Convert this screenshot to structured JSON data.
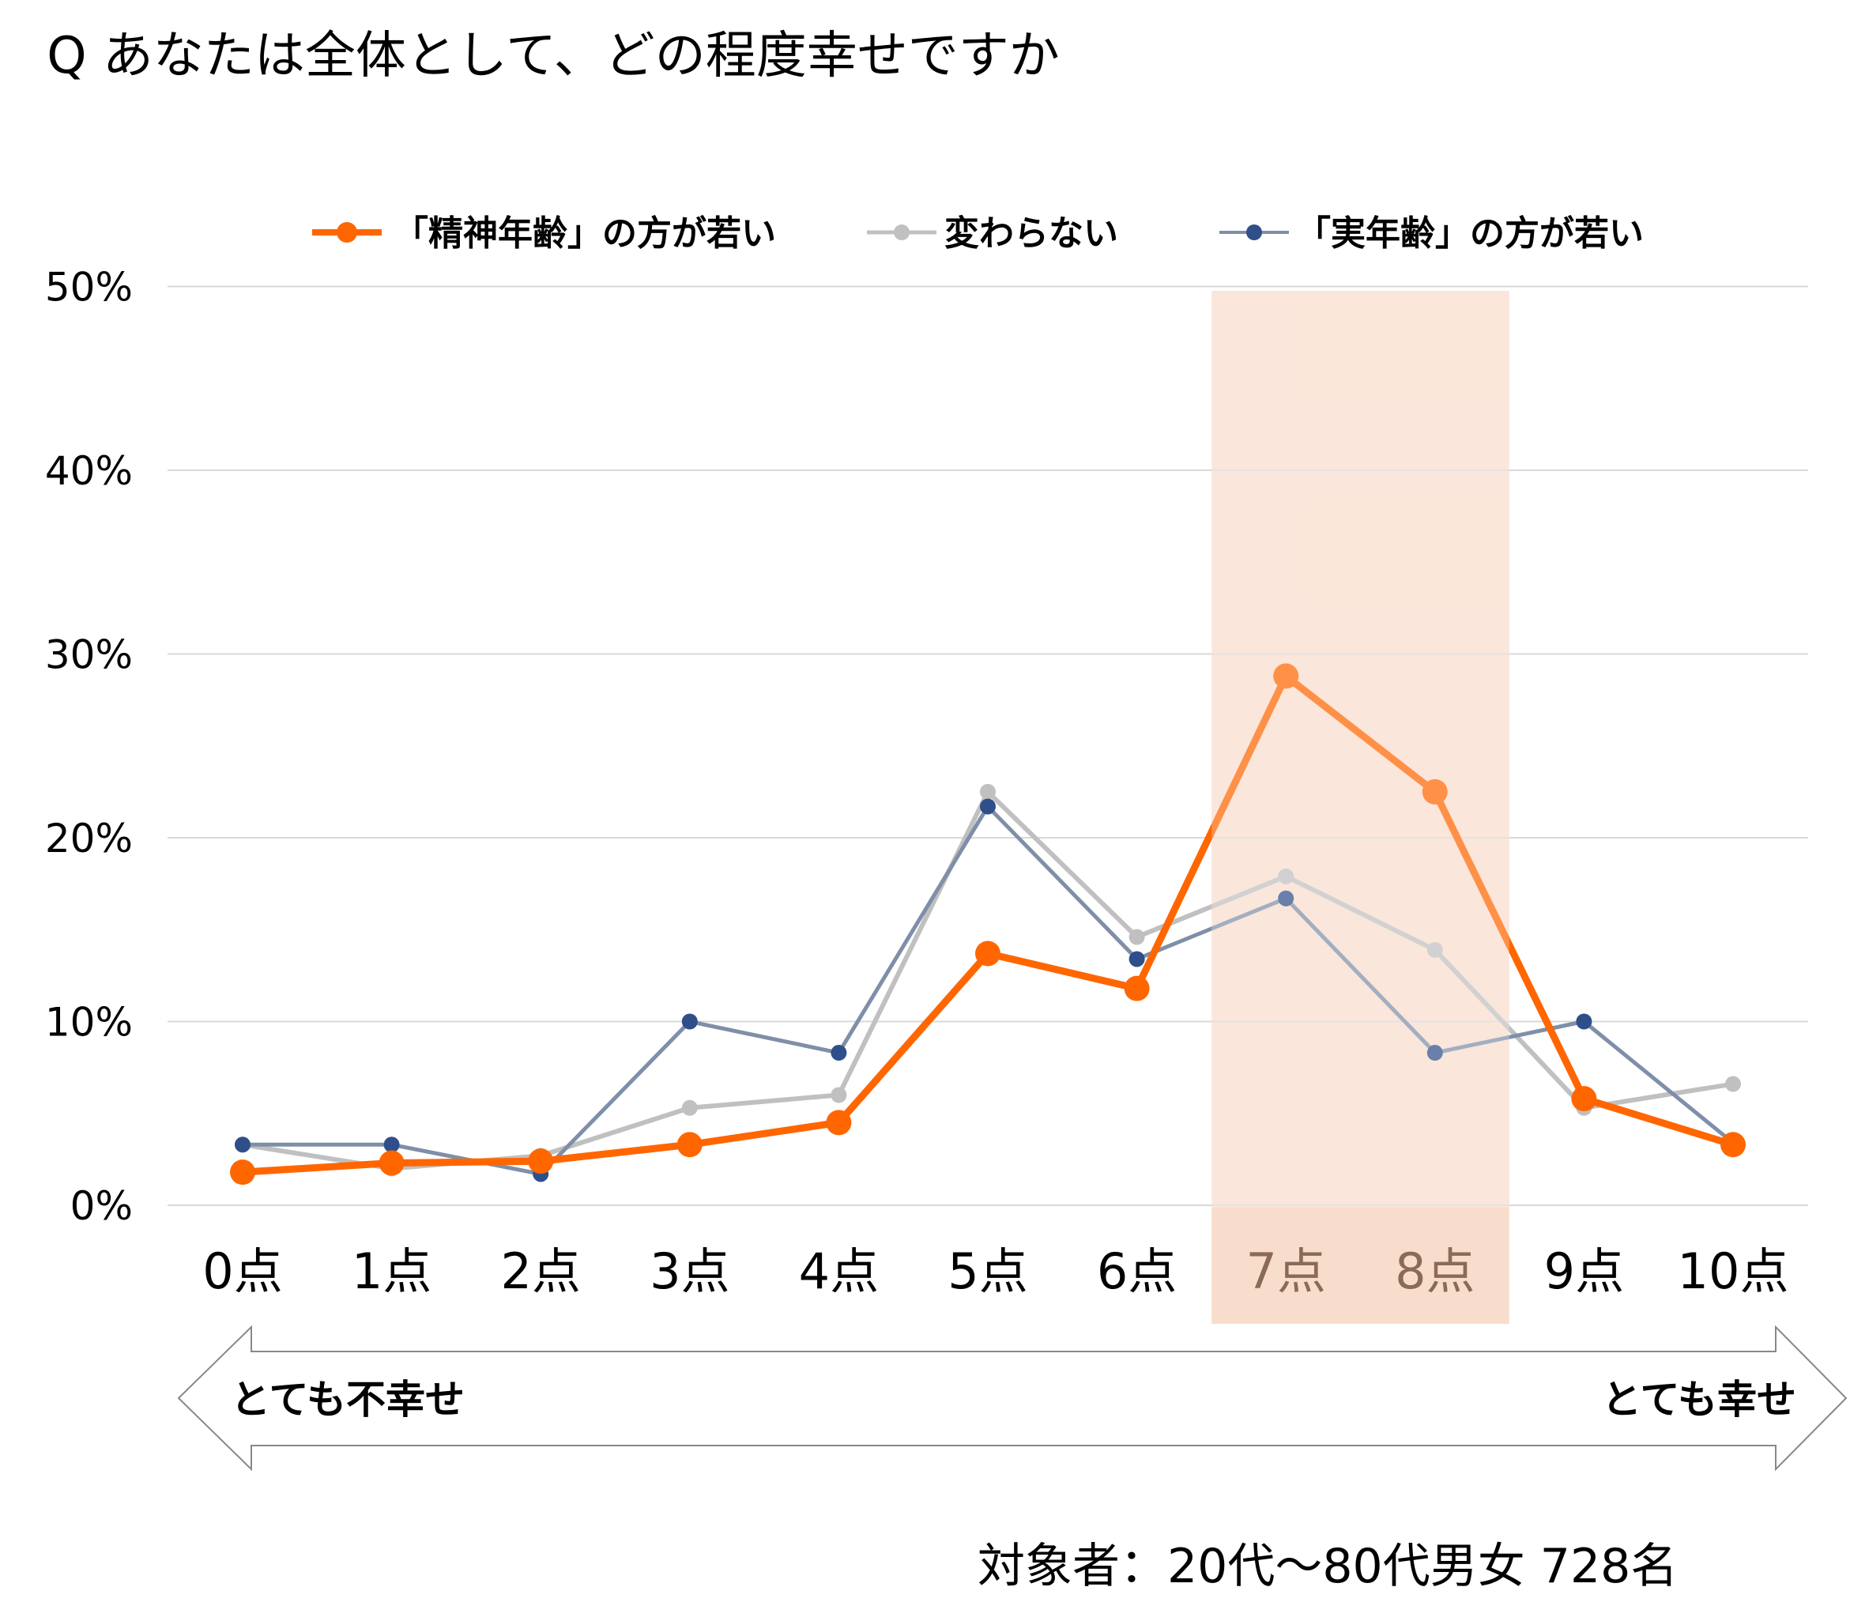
{
  "chart_data": {
    "type": "line",
    "title": "Q あなたは全体として、どの程度幸せですか",
    "categories": [
      "0点",
      "1点",
      "2点",
      "3点",
      "4点",
      "5点",
      "6点",
      "7点",
      "8点",
      "9点",
      "10点"
    ],
    "y_ticks": [
      "0%",
      "10%",
      "20%",
      "30%",
      "40%",
      "50%"
    ],
    "ylim": [
      0,
      50
    ],
    "grid": "horizontal",
    "legend_position": "top",
    "highlight_range": [
      "7点",
      "8点"
    ],
    "series": [
      {
        "name": "「精神年齢」の方が若い",
        "color": "#ff6600",
        "values": [
          1.8,
          2.3,
          2.4,
          3.3,
          4.5,
          13.7,
          11.8,
          28.8,
          22.5,
          5.8,
          3.3
        ]
      },
      {
        "name": "変わらない",
        "color": "#c0c0c0",
        "values": [
          3.3,
          2.0,
          2.7,
          5.3,
          6.0,
          22.5,
          14.6,
          17.9,
          13.9,
          5.3,
          6.6
        ]
      },
      {
        "name": "「実年齢」の方が若い",
        "color": "#7f8fa9",
        "values": [
          3.3,
          3.3,
          1.7,
          10.0,
          8.3,
          21.7,
          13.4,
          16.7,
          8.3,
          10.0,
          3.4
        ]
      }
    ],
    "scale_left": "とても不幸せ",
    "scale_right": "とても幸せ",
    "note": "対象者：20代～80代男女 728名"
  },
  "colors": {
    "highlight": "#f8ddcc",
    "grid": "#d9d9d9",
    "grey_marker": "#c0c0c0",
    "navy_marker": "#2f4f8a",
    "highlight_tick": "#8c6a5a"
  }
}
